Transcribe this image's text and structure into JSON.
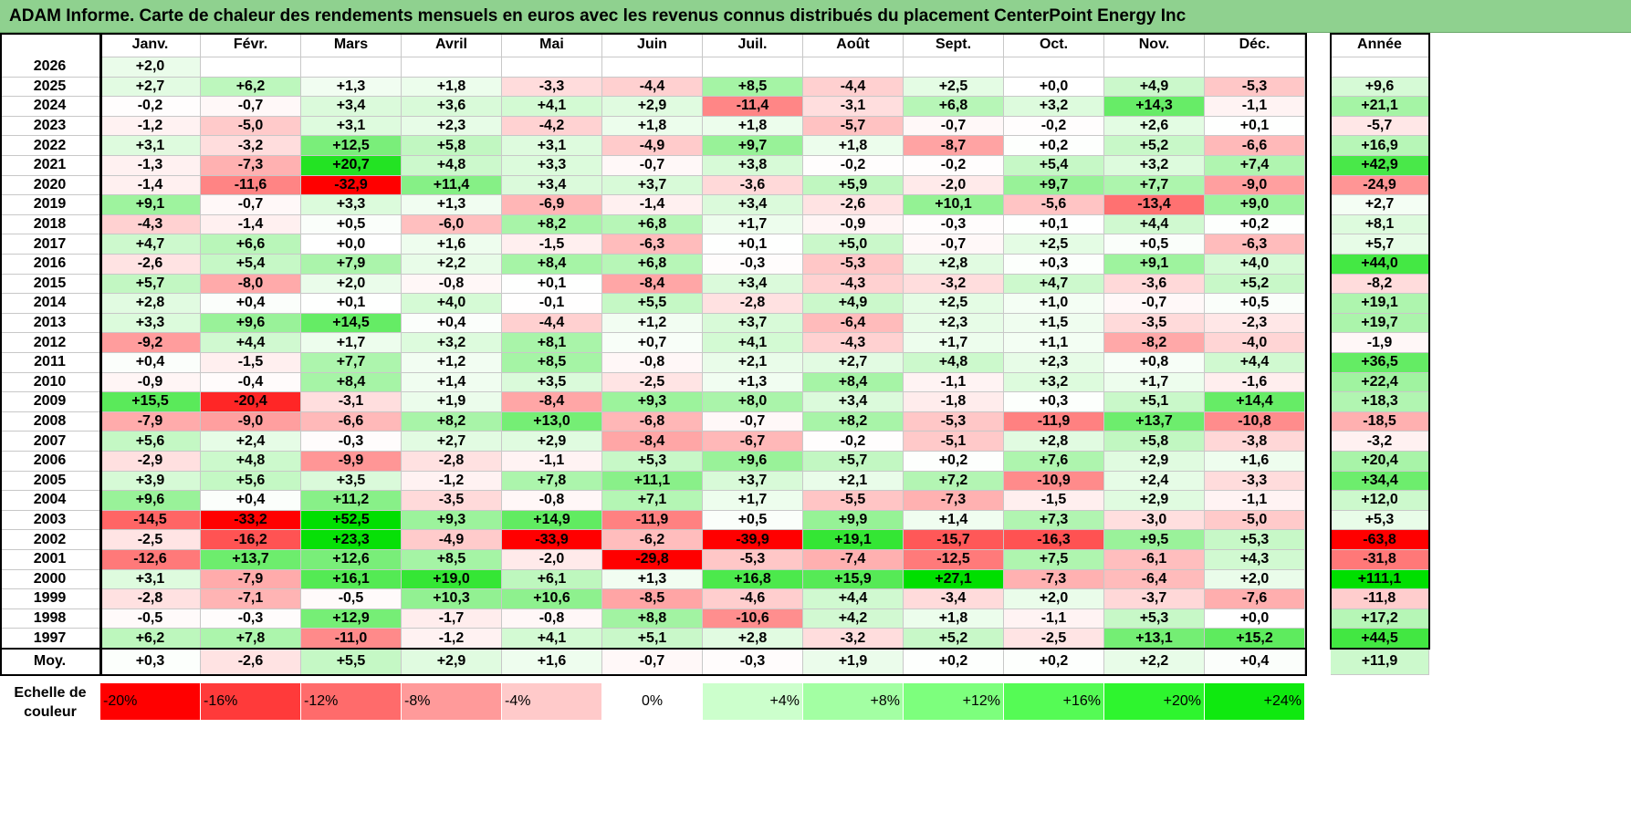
{
  "title": "ADAM Informe. Carte de chaleur des rendements mensuels en euros avec les revenus connus distribués du placement CenterPoint Energy Inc",
  "chart_data": {
    "type": "heatmap",
    "title": "ADAM Informe. Carte de chaleur des rendements mensuels en euros avec les revenus connus distribués du placement CenterPoint Energy Inc",
    "columns": [
      "Janv.",
      "Févr.",
      "Mars",
      "Avril",
      "Mai",
      "Juin",
      "Juil.",
      "Août",
      "Sept.",
      "Oct.",
      "Nov.",
      "Déc."
    ],
    "annual_header": "Année",
    "rows": [
      {
        "year": "2026",
        "values": [
          "+2,0",
          "",
          "",
          "",
          "",
          "",
          "",
          "",
          "",
          "",
          "",
          ""
        ],
        "annual": ""
      },
      {
        "year": "2025",
        "values": [
          "+2,7",
          "+6,2",
          "+1,3",
          "+1,8",
          "-3,3",
          "-4,4",
          "+8,5",
          "-4,4",
          "+2,5",
          "+0,0",
          "+4,9",
          "-5,3"
        ],
        "annual": "+9,6"
      },
      {
        "year": "2024",
        "values": [
          "-0,2",
          "-0,7",
          "+3,4",
          "+3,6",
          "+4,1",
          "+2,9",
          "-11,4",
          "-3,1",
          "+6,8",
          "+3,2",
          "+14,3",
          "-1,1"
        ],
        "annual": "+21,1"
      },
      {
        "year": "2023",
        "values": [
          "-1,2",
          "-5,0",
          "+3,1",
          "+2,3",
          "-4,2",
          "+1,8",
          "+1,8",
          "-5,7",
          "-0,7",
          "-0,2",
          "+2,6",
          "+0,1"
        ],
        "annual": "-5,7"
      },
      {
        "year": "2022",
        "values": [
          "+3,1",
          "-3,2",
          "+12,5",
          "+5,8",
          "+3,1",
          "-4,9",
          "+9,7",
          "+1,8",
          "-8,7",
          "+0,2",
          "+5,2",
          "-6,6"
        ],
        "annual": "+16,9"
      },
      {
        "year": "2021",
        "values": [
          "-1,3",
          "-7,3",
          "+20,7",
          "+4,8",
          "+3,3",
          "-0,7",
          "+3,8",
          "-0,2",
          "-0,2",
          "+5,4",
          "+3,2",
          "+7,4"
        ],
        "annual": "+42,9"
      },
      {
        "year": "2020",
        "values": [
          "-1,4",
          "-11,6",
          "-32,9",
          "+11,4",
          "+3,4",
          "+3,7",
          "-3,6",
          "+5,9",
          "-2,0",
          "+9,7",
          "+7,7",
          "-9,0"
        ],
        "annual": "-24,9"
      },
      {
        "year": "2019",
        "values": [
          "+9,1",
          "-0,7",
          "+3,3",
          "+1,3",
          "-6,9",
          "-1,4",
          "+3,4",
          "-2,6",
          "+10,1",
          "-5,6",
          "-13,4",
          "+9,0"
        ],
        "annual": "+2,7"
      },
      {
        "year": "2018",
        "values": [
          "-4,3",
          "-1,4",
          "+0,5",
          "-6,0",
          "+8,2",
          "+6,8",
          "+1,7",
          "-0,9",
          "-0,3",
          "+0,1",
          "+4,4",
          "+0,2"
        ],
        "annual": "+8,1"
      },
      {
        "year": "2017",
        "values": [
          "+4,7",
          "+6,6",
          "+0,0",
          "+1,6",
          "-1,5",
          "-6,3",
          "+0,1",
          "+5,0",
          "-0,7",
          "+2,5",
          "+0,5",
          "-6,3"
        ],
        "annual": "+5,7"
      },
      {
        "year": "2016",
        "values": [
          "-2,6",
          "+5,4",
          "+7,9",
          "+2,2",
          "+8,4",
          "+6,8",
          "-0,3",
          "-5,3",
          "+2,8",
          "+0,3",
          "+9,1",
          "+4,0"
        ],
        "annual": "+44,0"
      },
      {
        "year": "2015",
        "values": [
          "+5,7",
          "-8,0",
          "+2,0",
          "-0,8",
          "+0,1",
          "-8,4",
          "+3,4",
          "-4,3",
          "-3,2",
          "+4,7",
          "-3,6",
          "+5,2"
        ],
        "annual": "-8,2"
      },
      {
        "year": "2014",
        "values": [
          "+2,8",
          "+0,4",
          "+0,1",
          "+4,0",
          "-0,1",
          "+5,5",
          "-2,8",
          "+4,9",
          "+2,5",
          "+1,0",
          "-0,7",
          "+0,5"
        ],
        "annual": "+19,1"
      },
      {
        "year": "2013",
        "values": [
          "+3,3",
          "+9,6",
          "+14,5",
          "+0,4",
          "-4,4",
          "+1,2",
          "+3,7",
          "-6,4",
          "+2,3",
          "+1,5",
          "-3,5",
          "-2,3"
        ],
        "annual": "+19,7"
      },
      {
        "year": "2012",
        "values": [
          "-9,2",
          "+4,4",
          "+1,7",
          "+3,2",
          "+8,1",
          "+0,7",
          "+4,1",
          "-4,3",
          "+1,7",
          "+1,1",
          "-8,2",
          "-4,0"
        ],
        "annual": "-1,9"
      },
      {
        "year": "2011",
        "values": [
          "+0,4",
          "-1,5",
          "+7,7",
          "+1,2",
          "+8,5",
          "-0,8",
          "+2,1",
          "+2,7",
          "+4,8",
          "+2,3",
          "+0,8",
          "+4,4"
        ],
        "annual": "+36,5"
      },
      {
        "year": "2010",
        "values": [
          "-0,9",
          "-0,4",
          "+8,4",
          "+1,4",
          "+3,5",
          "-2,5",
          "+1,3",
          "+8,4",
          "-1,1",
          "+3,2",
          "+1,7",
          "-1,6"
        ],
        "annual": "+22,4"
      },
      {
        "year": "2009",
        "values": [
          "+15,5",
          "-20,4",
          "-3,1",
          "+1,9",
          "-8,4",
          "+9,3",
          "+8,0",
          "+3,4",
          "-1,8",
          "+0,3",
          "+5,1",
          "+14,4"
        ],
        "annual": "+18,3"
      },
      {
        "year": "2008",
        "values": [
          "-7,9",
          "-9,0",
          "-6,6",
          "+8,2",
          "+13,0",
          "-6,8",
          "-0,7",
          "+8,2",
          "-5,3",
          "-11,9",
          "+13,7",
          "-10,8"
        ],
        "annual": "-18,5"
      },
      {
        "year": "2007",
        "values": [
          "+5,6",
          "+2,4",
          "-0,3",
          "+2,7",
          "+2,9",
          "-8,4",
          "-6,7",
          "-0,2",
          "-5,1",
          "+2,8",
          "+5,8",
          "-3,8"
        ],
        "annual": "-3,2"
      },
      {
        "year": "2006",
        "values": [
          "-2,9",
          "+4,8",
          "-9,9",
          "-2,8",
          "-1,1",
          "+5,3",
          "+9,6",
          "+5,7",
          "+0,2",
          "+7,6",
          "+2,9",
          "+1,6"
        ],
        "annual": "+20,4"
      },
      {
        "year": "2005",
        "values": [
          "+3,9",
          "+5,6",
          "+3,5",
          "-1,2",
          "+7,8",
          "+11,1",
          "+3,7",
          "+2,1",
          "+7,2",
          "-10,9",
          "+2,4",
          "-3,3"
        ],
        "annual": "+34,4"
      },
      {
        "year": "2004",
        "values": [
          "+9,6",
          "+0,4",
          "+11,2",
          "-3,5",
          "-0,8",
          "+7,1",
          "+1,7",
          "-5,5",
          "-7,3",
          "-1,5",
          "+2,9",
          "-1,1"
        ],
        "annual": "+12,0"
      },
      {
        "year": "2003",
        "values": [
          "-14,5",
          "-33,2",
          "+52,5",
          "+9,3",
          "+14,9",
          "-11,9",
          "+0,5",
          "+9,9",
          "+1,4",
          "+7,3",
          "-3,0",
          "-5,0"
        ],
        "annual": "+5,3"
      },
      {
        "year": "2002",
        "values": [
          "-2,5",
          "-16,2",
          "+23,3",
          "-4,9",
          "-33,9",
          "-6,2",
          "-39,9",
          "+19,1",
          "-15,7",
          "-16,3",
          "+9,5",
          "+5,3"
        ],
        "annual": "-63,8"
      },
      {
        "year": "2001",
        "values": [
          "-12,6",
          "+13,7",
          "+12,6",
          "+8,5",
          "-2,0",
          "-29,8",
          "-5,3",
          "-7,4",
          "-12,5",
          "+7,5",
          "-6,1",
          "+4,3"
        ],
        "annual": "-31,8"
      },
      {
        "year": "2000",
        "values": [
          "+3,1",
          "-7,9",
          "+16,1",
          "+19,0",
          "+6,1",
          "+1,3",
          "+16,8",
          "+15,9",
          "+27,1",
          "-7,3",
          "-6,4",
          "+2,0"
        ],
        "annual": "+111,1"
      },
      {
        "year": "1999",
        "values": [
          "-2,8",
          "-7,1",
          "-0,5",
          "+10,3",
          "+10,6",
          "-8,5",
          "-4,6",
          "+4,4",
          "-3,4",
          "+2,0",
          "-3,7",
          "-7,6"
        ],
        "annual": "-11,8"
      },
      {
        "year": "1998",
        "values": [
          "-0,5",
          "-0,3",
          "+12,9",
          "-1,7",
          "-0,8",
          "+8,8",
          "-10,6",
          "+4,2",
          "+1,8",
          "-1,1",
          "+5,3",
          "+0,0"
        ],
        "annual": "+17,2"
      },
      {
        "year": "1997",
        "values": [
          "+6,2",
          "+7,8",
          "-11,0",
          "-1,2",
          "+4,1",
          "+5,1",
          "+2,8",
          "-3,2",
          "+5,2",
          "-2,5",
          "+13,1",
          "+15,2"
        ],
        "annual": "+44,5"
      }
    ],
    "average": {
      "label": "Moy.",
      "values": [
        "+0,3",
        "-2,6",
        "+5,5",
        "+2,9",
        "+1,6",
        "-0,7",
        "-0,3",
        "+1,9",
        "+0,2",
        "+0,2",
        "+2,2",
        "+0,4"
      ],
      "annual": "+11,9"
    },
    "scale": {
      "label_line1": "Echelle de",
      "label_line2": "couleur",
      "steps": [
        {
          "label": "-20%",
          "color": "#ff0000"
        },
        {
          "label": "-16%",
          "color": "#ff3a3a"
        },
        {
          "label": "-12%",
          "color": "#ff6b6b"
        },
        {
          "label": "-8%",
          "color": "#ff9a9a"
        },
        {
          "label": "-4%",
          "color": "#ffcaca"
        },
        {
          "label": "0%",
          "color": "#ffffff"
        },
        {
          "label": "+4%",
          "color": "#ccffcc"
        },
        {
          "label": "+8%",
          "color": "#a3ffa3"
        },
        {
          "label": "+12%",
          "color": "#7dff7d"
        },
        {
          "label": "+16%",
          "color": "#55fb55"
        },
        {
          "label": "+20%",
          "color": "#2ef52e"
        },
        {
          "label": "+24%",
          "color": "#0fe90f"
        }
      ]
    }
  }
}
